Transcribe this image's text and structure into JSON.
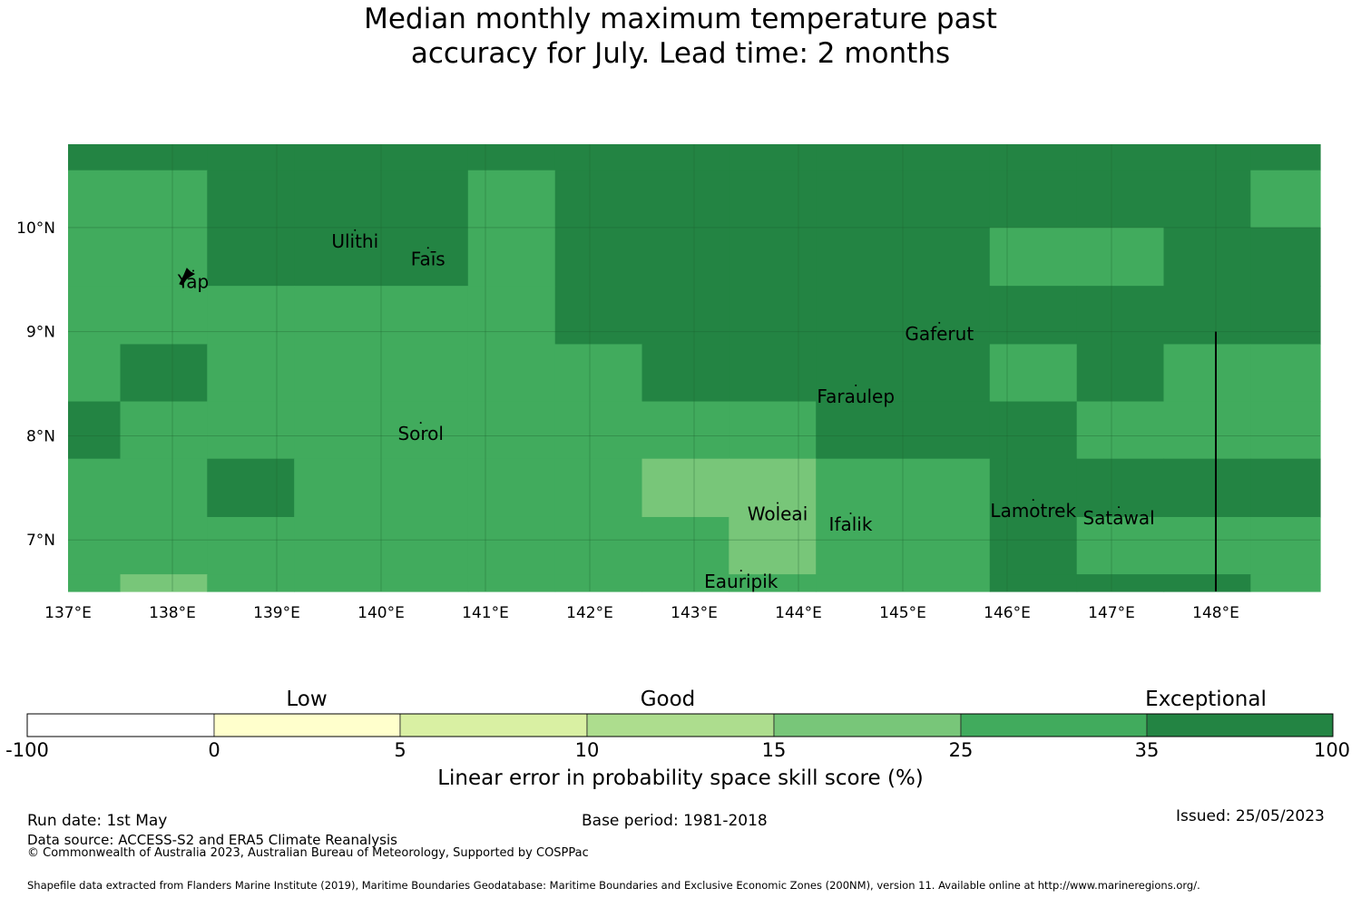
{
  "title_lines": [
    "Median monthly maximum temperature past",
    "accuracy for July. Lead time: 2 months"
  ],
  "map": {
    "lon_range": [
      137,
      149
    ],
    "lat_range": [
      6.5,
      10.8
    ],
    "lon_labels": [
      "137°E",
      "138°E",
      "139°E",
      "140°E",
      "141°E",
      "142°E",
      "143°E",
      "144°E",
      "145°E",
      "146°E",
      "147°E",
      "148°E"
    ],
    "lat_labels": [
      "10°N",
      "9°N",
      "8°N",
      "7°N"
    ],
    "places": [
      {
        "name": "Ulithi",
        "lon": 139.75,
        "lat": 9.87
      },
      {
        "name": "Faīs",
        "lon": 140.45,
        "lat": 9.7
      },
      {
        "name": "Yap",
        "lon": 138.2,
        "lat": 9.48
      },
      {
        "name": "Gaferut",
        "lon": 145.35,
        "lat": 8.98
      },
      {
        "name": "Faraulep",
        "lon": 144.55,
        "lat": 8.38
      },
      {
        "name": "Sorol",
        "lon": 140.38,
        "lat": 8.02
      },
      {
        "name": "Woleai",
        "lon": 143.8,
        "lat": 7.25
      },
      {
        "name": "Ifalik",
        "lon": 144.5,
        "lat": 7.15
      },
      {
        "name": "Lamotrek",
        "lon": 146.25,
        "lat": 7.28
      },
      {
        "name": "Satawal",
        "lon": 147.07,
        "lat": 7.21
      },
      {
        "name": "Eauripik",
        "lon": 143.45,
        "lat": 6.6
      }
    ],
    "grid_lon_edges": [
      137,
      137.5,
      138.333,
      139.167,
      140.833,
      141.667,
      142.5,
      143.333,
      144.167,
      145.833,
      146.667,
      147.5,
      148.333,
      149
    ],
    "grid_lat_edges": [
      10.8,
      10.55,
      10.0,
      9.44,
      8.88,
      8.33,
      7.78,
      7.22,
      6.67,
      6.5
    ],
    "cell_categories": [
      [
        "35-100",
        "35-100",
        "35-100",
        "35-100",
        "35-100",
        "35-100",
        "35-100",
        "35-100",
        "35-100",
        "35-100",
        "35-100",
        "35-100",
        "35-100"
      ],
      [
        "25-35",
        "25-35",
        "35-100",
        "35-100",
        "25-35",
        "35-100",
        "35-100",
        "35-100",
        "35-100",
        "35-100",
        "35-100",
        "35-100",
        "25-35"
      ],
      [
        "25-35",
        "25-35",
        "35-100",
        "35-100",
        "25-35",
        "35-100",
        "35-100",
        "35-100",
        "35-100",
        "25-35",
        "25-35",
        "35-100",
        "35-100"
      ],
      [
        "25-35",
        "25-35",
        "25-35",
        "25-35",
        "25-35",
        "35-100",
        "35-100",
        "35-100",
        "35-100",
        "35-100",
        "35-100",
        "35-100",
        "35-100"
      ],
      [
        "25-35",
        "35-100",
        "25-35",
        "25-35",
        "25-35",
        "25-35",
        "35-100",
        "35-100",
        "35-100",
        "25-35",
        "35-100",
        "25-35",
        "25-35"
      ],
      [
        "35-100",
        "25-35",
        "25-35",
        "25-35",
        "25-35",
        "25-35",
        "25-35",
        "25-35",
        "35-100",
        "35-100",
        "25-35",
        "25-35",
        "25-35"
      ],
      [
        "25-35",
        "25-35",
        "35-100",
        "25-35",
        "25-35",
        "25-35",
        "15-25",
        "15-25",
        "25-35",
        "35-100",
        "35-100",
        "35-100",
        "35-100"
      ],
      [
        "25-35",
        "25-35",
        "25-35",
        "25-35",
        "25-35",
        "25-35",
        "25-35",
        "15-25",
        "25-35",
        "35-100",
        "25-35",
        "25-35",
        "25-35"
      ],
      [
        "25-35",
        "15-25",
        "25-35",
        "25-35",
        "25-35",
        "25-35",
        "25-35",
        "25-35",
        "25-35",
        "35-100",
        "35-100",
        "35-100",
        "25-35"
      ]
    ],
    "boundary_line_lon": 148,
    "boundary_line_lat_top": 9.0
  },
  "colorbar": {
    "headings": [
      "Low",
      "Good",
      "Exceptional"
    ],
    "ticks": [
      "-100",
      "0",
      "5",
      "10",
      "15",
      "25",
      "35",
      "100"
    ],
    "colors": [
      "#ffffff",
      "#ffffcc",
      "#d9f0a3",
      "#addd8e",
      "#78c679",
      "#41ab5d",
      "#238443"
    ],
    "label": "Linear error in probability space skill score (%)"
  },
  "footer": {
    "run_date": "Run date: 1st May",
    "base_period": "Base period: 1981-2018",
    "issued": "Issued: 25/05/2023",
    "data_source": "Data source: ACCESS-S2 and ERA5 Climate Reanalysis",
    "copyright": "© Commonwealth of Australia 2023, Australian Bureau of Meteorology, Supported by COSPPac",
    "shapefile": "Shapefile data extracted from Flanders Marine Institute (2019), Maritime Boundaries Geodatabase: Maritime Boundaries and Exclusive Economic Zones (200NM), version 11. Available online at http://www.marineregions.org/."
  }
}
